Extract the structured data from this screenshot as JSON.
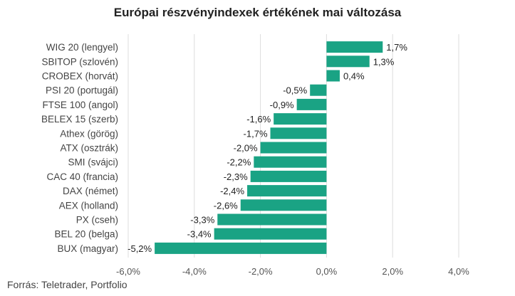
{
  "chart_data": {
    "type": "bar",
    "orientation": "horizontal",
    "title": "Európai részvényindexek értékének mai változása",
    "categories": [
      "WIG 20 (lengyel)",
      "SBITOP (szlovén)",
      "CROBEX (horvát)",
      "PSI 20 (portugál)",
      "FTSE 100 (angol)",
      "BELEX 15 (szerb)",
      "Athex (görög)",
      "ATX (osztrák)",
      "SMI (svájci)",
      "CAC 40 (francia)",
      "DAX (német)",
      "AEX (holland)",
      "PX (cseh)",
      "BEL 20 (belga)",
      "BUX (magyar)"
    ],
    "values": [
      1.7,
      1.3,
      0.4,
      -0.5,
      -0.9,
      -1.6,
      -1.7,
      -2.0,
      -2.2,
      -2.3,
      -2.4,
      -2.6,
      -3.3,
      -3.4,
      -5.2
    ],
    "value_labels": [
      "1,7%",
      "1,3%",
      "0,4%",
      "-0,5%",
      "-0,9%",
      "-1,6%",
      "-1,7%",
      "-2,0%",
      "-2,2%",
      "-2,3%",
      "-2,4%",
      "-2,6%",
      "-3,3%",
      "-3,4%",
      "-5,2%"
    ],
    "x_ticks": [
      -6,
      -4,
      -2,
      0,
      2,
      4
    ],
    "x_tick_labels": [
      "-6,0%",
      "-4,0%",
      "-2,0%",
      "0,0%",
      "2,0%",
      "4,0%"
    ],
    "xlim": [
      -6,
      4
    ],
    "grid": "vertical",
    "bar_color": "#1aa384",
    "source": "Forrás: Teletrader, Portfolio"
  }
}
